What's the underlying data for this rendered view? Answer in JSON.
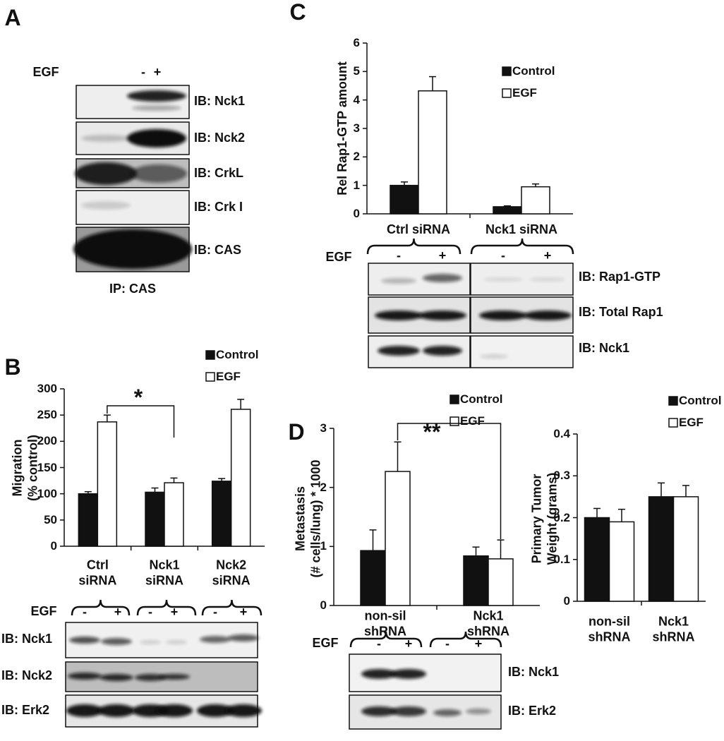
{
  "panel_labels": [
    "A",
    "B",
    "C",
    "D"
  ],
  "panel_a_blot": {
    "treatment_label": "EGF",
    "lanes": [
      "-",
      "+"
    ],
    "rows": [
      "IB: Nck1",
      "IB: Nck2",
      "IB: CrkL",
      "IB: Crk I",
      "IB: CAS"
    ],
    "footer": "IP: CAS"
  },
  "panel_b_blot": {
    "treatment_label": "EGF",
    "lanes": [
      "-",
      "+",
      "-",
      "+",
      "-",
      "+"
    ],
    "rows": [
      "IB: Nck1",
      "IB: Nck2",
      "IB: Erk2"
    ]
  },
  "panel_c_blot": {
    "treatment_label": "EGF",
    "lanes": [
      "-",
      "+",
      "-",
      "+"
    ],
    "rows": [
      "IB: Rap1-GTP",
      "IB: Total Rap1",
      "IB: Nck1"
    ]
  },
  "panel_d_blot": {
    "treatment_label": "EGF",
    "lanes": [
      "-",
      "+",
      "-",
      "+"
    ],
    "rows": [
      "IB: Nck1",
      "IB: Erk2"
    ]
  },
  "chart_data": [
    {
      "type": "bar",
      "y_label": "Migration\n(% control)",
      "categories": [
        "Ctrl\nsiRNA",
        "Nck1\nsiRNA",
        "Nck2\nsiRNA"
      ],
      "series": [
        {
          "name": "Control",
          "color": "#111111",
          "values": [
            100,
            103,
            124
          ],
          "errors": [
            4,
            8,
            5
          ]
        },
        {
          "name": "EGF",
          "color": "#ffffff",
          "values": [
            237,
            121,
            261
          ],
          "errors": [
            13,
            9,
            19
          ]
        }
      ],
      "ylim": [
        0,
        300
      ],
      "yticks": [
        0,
        50,
        100,
        150,
        200,
        250,
        300
      ],
      "legend": "top-right",
      "annotations": [
        "*"
      ]
    },
    {
      "type": "bar",
      "y_label": "Rel Rap1-GTP amount",
      "categories": [
        "Ctrl siRNA",
        "Nck1 siRNA"
      ],
      "series": [
        {
          "name": "Control",
          "color": "#111111",
          "values": [
            1.0,
            0.25
          ],
          "errors": [
            0.12,
            0.03
          ]
        },
        {
          "name": "EGF",
          "color": "#ffffff",
          "values": [
            4.32,
            0.95
          ],
          "errors": [
            0.5,
            0.1
          ]
        }
      ],
      "ylim": [
        0,
        6
      ],
      "yticks": [
        0,
        1,
        2,
        3,
        4,
        5,
        6
      ],
      "legend": "top-right"
    },
    {
      "type": "bar",
      "y_label": "Metastasis\n(# cells/lung) * 1000",
      "categories": [
        "non-sil\nshRNA",
        "Nck1\nshRNA"
      ],
      "series": [
        {
          "name": "Control",
          "color": "#111111",
          "values": [
            0.93,
            0.84
          ],
          "errors": [
            0.35,
            0.15
          ]
        },
        {
          "name": "EGF",
          "color": "#ffffff",
          "values": [
            2.27,
            0.79
          ],
          "errors": [
            0.5,
            0.32
          ]
        }
      ],
      "ylim": [
        0,
        3
      ],
      "yticks": [
        0,
        1,
        2,
        3
      ],
      "legend": "top-right",
      "annotations": [
        "**"
      ]
    },
    {
      "type": "bar",
      "y_label": "Primary Tumor\nWeight (grams)",
      "categories": [
        "non-sil\nshRNA",
        "Nck1\nshRNA"
      ],
      "series": [
        {
          "name": "Control",
          "color": "#111111",
          "values": [
            0.2,
            0.25
          ],
          "errors": [
            0.022,
            0.033
          ]
        },
        {
          "name": "EGF",
          "color": "#ffffff",
          "values": [
            0.19,
            0.25
          ],
          "errors": [
            0.03,
            0.027
          ]
        }
      ],
      "ylim": [
        0,
        0.4
      ],
      "yticks": [
        0,
        0.1,
        0.2,
        0.3,
        0.4
      ],
      "legend": "top-right"
    }
  ]
}
